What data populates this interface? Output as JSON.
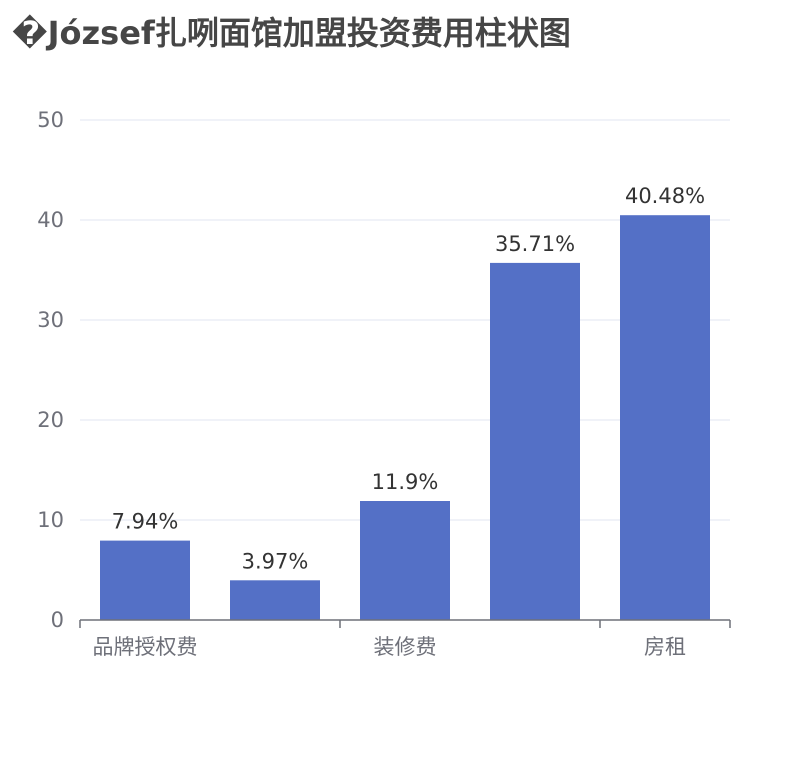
{
  "chart_data": {
    "type": "bar",
    "title": "�József扎咧面馆加盟投资费用柱状图",
    "categories": [
      "品牌授权费",
      "",
      "装修费",
      "",
      "房租"
    ],
    "values": [
      7.94,
      3.97,
      11.9,
      35.71,
      40.48
    ],
    "data_labels": [
      "7.94%",
      "3.97%",
      "11.9%",
      "35.71%",
      "40.48%"
    ],
    "x_tick_labels": [
      "品牌授权费",
      "装修费",
      "房租"
    ],
    "y_ticks": [
      "0",
      "10",
      "20",
      "30",
      "40",
      "50"
    ],
    "ylim": [
      0,
      50
    ],
    "xlabel": "",
    "ylabel": "",
    "grid": true,
    "bar_color": "#5470c6",
    "grid_color": "#e0e6f1",
    "axis_color": "#6e7079"
  }
}
